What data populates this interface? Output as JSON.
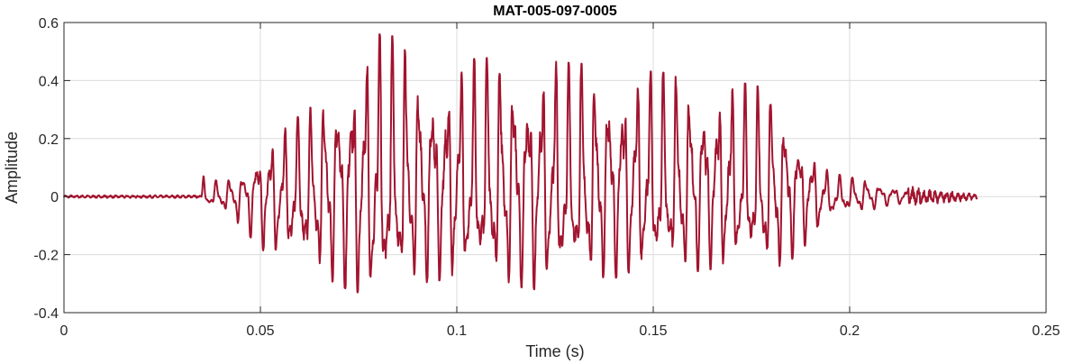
{
  "chart_data": {
    "type": "line",
    "title": "MAT-005-097-0005",
    "xlabel": "Time (s)",
    "ylabel": "Amplitude",
    "xlim": [
      0,
      0.25
    ],
    "ylim": [
      -0.4,
      0.6
    ],
    "xticks": [
      0,
      0.05,
      0.1,
      0.15,
      0.2,
      0.25
    ],
    "xtick_labels": [
      "0",
      "0.05",
      "0.1",
      "0.15",
      "0.2",
      "0.25"
    ],
    "yticks": [
      -0.4,
      -0.2,
      0,
      0.2,
      0.4,
      0.6
    ],
    "ytick_labels": [
      "-0.4",
      "-0.2",
      "0",
      "0.2",
      "0.4",
      "0.6"
    ],
    "grid": true,
    "series": [
      {
        "color": "#A2142F",
        "x_range": [
          0,
          0.2325
        ],
        "envelope": {
          "t": [
            0.0,
            0.035,
            0.0355,
            0.04,
            0.045,
            0.05,
            0.055,
            0.06,
            0.065,
            0.07,
            0.075,
            0.08,
            0.085,
            0.09,
            0.1,
            0.11,
            0.12,
            0.13,
            0.14,
            0.15,
            0.16,
            0.17,
            0.18,
            0.185,
            0.19,
            0.195,
            0.2,
            0.205,
            0.21,
            0.22,
            0.2325
          ],
          "pos": [
            0.005,
            0.005,
            0.07,
            0.05,
            0.08,
            0.18,
            0.22,
            0.28,
            0.33,
            0.44,
            0.52,
            0.56,
            0.55,
            0.46,
            0.47,
            0.48,
            0.47,
            0.46,
            0.45,
            0.43,
            0.42,
            0.4,
            0.37,
            0.29,
            0.17,
            0.08,
            0.07,
            0.06,
            0.04,
            0.03,
            0.01
          ],
          "neg": [
            -0.005,
            -0.005,
            -0.03,
            -0.05,
            -0.1,
            -0.18,
            -0.22,
            -0.25,
            -0.28,
            -0.3,
            -0.35,
            -0.38,
            -0.33,
            -0.3,
            -0.28,
            -0.3,
            -0.32,
            -0.3,
            -0.28,
            -0.27,
            -0.26,
            -0.24,
            -0.26,
            -0.22,
            -0.15,
            -0.08,
            -0.06,
            -0.05,
            -0.03,
            -0.02,
            -0.01
          ]
        }
      }
    ]
  }
}
